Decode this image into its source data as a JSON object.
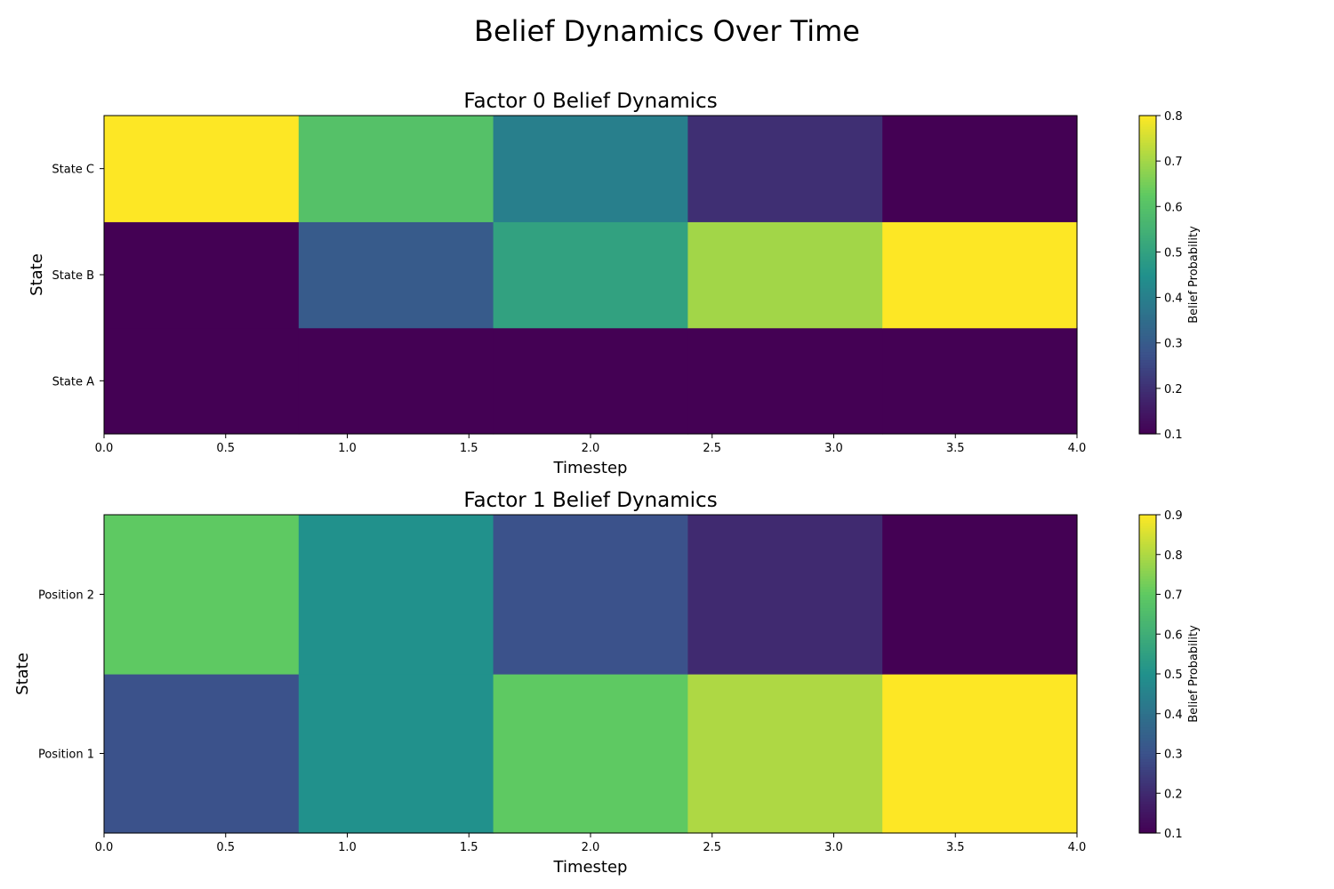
{
  "figure": {
    "title": "Belief Dynamics Over Time"
  },
  "colormap": [
    "#440154",
    "#3b528b",
    "#21918c",
    "#5ec962",
    "#fde725"
  ],
  "chart_data": [
    {
      "type": "heatmap",
      "title": "Factor 0 Belief Dynamics",
      "xlabel": "Timestep",
      "ylabel": "State",
      "xlim": [
        0,
        4
      ],
      "xticks": [
        "0.0",
        "0.5",
        "1.0",
        "1.5",
        "2.0",
        "2.5",
        "3.0",
        "3.5",
        "4.0"
      ],
      "columns": 5,
      "rows": [
        "State A",
        "State B",
        "State C"
      ],
      "values": [
        [
          0.1,
          0.1,
          0.1,
          0.1,
          0.1
        ],
        [
          0.1,
          0.3,
          0.5,
          0.7,
          0.8
        ],
        [
          0.8,
          0.6,
          0.4,
          0.2,
          0.1
        ]
      ],
      "colorbar": {
        "label": "Belief Probability",
        "range": [
          0.1,
          0.8
        ],
        "ticks": [
          "0.1",
          "0.2",
          "0.3",
          "0.4",
          "0.5",
          "0.6",
          "0.7",
          "0.8"
        ]
      }
    },
    {
      "type": "heatmap",
      "title": "Factor 1 Belief Dynamics",
      "xlabel": "Timestep",
      "ylabel": "State",
      "xlim": [
        0,
        4
      ],
      "xticks": [
        "0.0",
        "0.5",
        "1.0",
        "1.5",
        "2.0",
        "2.5",
        "3.0",
        "3.5",
        "4.0"
      ],
      "columns": 5,
      "rows": [
        "Position 1",
        "Position 2"
      ],
      "values": [
        [
          0.3,
          0.5,
          0.7,
          0.8,
          0.9
        ],
        [
          0.7,
          0.5,
          0.3,
          0.2,
          0.1
        ]
      ],
      "colorbar": {
        "label": "Belief Probability",
        "range": [
          0.1,
          0.9
        ],
        "ticks": [
          "0.1",
          "0.2",
          "0.3",
          "0.4",
          "0.5",
          "0.6",
          "0.7",
          "0.8",
          "0.9"
        ]
      }
    }
  ]
}
